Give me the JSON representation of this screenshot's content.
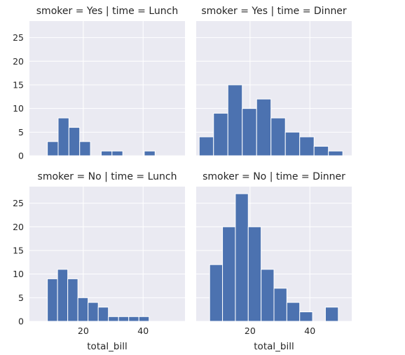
{
  "chart_data": {
    "type": "bar",
    "layout": "facet-grid",
    "xlabel": "total_bill",
    "ylabel": "",
    "xlim": [
      2,
      54
    ],
    "ylim": [
      0,
      28.5
    ],
    "x_ticks": [
      20,
      40
    ],
    "y_ticks": [
      0,
      5,
      10,
      15,
      20,
      25
    ],
    "grid": true,
    "colors": {
      "bar": "#4c72b0",
      "panel": "#eaeaf2",
      "grid": "#ffffff"
    },
    "panels": [
      {
        "title": "smoker = Yes | time = Lunch",
        "bins": [
          {
            "x0": 8.0,
            "x1": 11.6,
            "count": 3
          },
          {
            "x0": 11.6,
            "x1": 15.2,
            "count": 8
          },
          {
            "x0": 15.2,
            "x1": 18.8,
            "count": 6
          },
          {
            "x0": 18.8,
            "x1": 22.4,
            "count": 3
          },
          {
            "x0": 22.4,
            "x1": 26.0,
            "count": 0
          },
          {
            "x0": 26.0,
            "x1": 29.6,
            "count": 1
          },
          {
            "x0": 29.6,
            "x1": 33.2,
            "count": 1
          },
          {
            "x0": 33.2,
            "x1": 36.8,
            "count": 0
          },
          {
            "x0": 36.8,
            "x1": 40.4,
            "count": 0
          },
          {
            "x0": 40.4,
            "x1": 44.0,
            "count": 1
          }
        ]
      },
      {
        "title": "smoker = Yes | time = Dinner",
        "bins": [
          {
            "x0": 3.0,
            "x1": 7.8,
            "count": 4
          },
          {
            "x0": 7.8,
            "x1": 12.6,
            "count": 9
          },
          {
            "x0": 12.6,
            "x1": 17.4,
            "count": 15
          },
          {
            "x0": 17.4,
            "x1": 22.2,
            "count": 10
          },
          {
            "x0": 22.2,
            "x1": 27.0,
            "count": 12
          },
          {
            "x0": 27.0,
            "x1": 31.8,
            "count": 8
          },
          {
            "x0": 31.8,
            "x1": 36.6,
            "count": 5
          },
          {
            "x0": 36.6,
            "x1": 41.4,
            "count": 4
          },
          {
            "x0": 41.4,
            "x1": 46.2,
            "count": 2
          },
          {
            "x0": 46.2,
            "x1": 51.0,
            "count": 1
          }
        ]
      },
      {
        "title": "smoker = No | time = Lunch",
        "bins": [
          {
            "x0": 8.0,
            "x1": 11.4,
            "count": 9
          },
          {
            "x0": 11.4,
            "x1": 14.8,
            "count": 11
          },
          {
            "x0": 14.8,
            "x1": 18.2,
            "count": 9
          },
          {
            "x0": 18.2,
            "x1": 21.6,
            "count": 5
          },
          {
            "x0": 21.6,
            "x1": 25.0,
            "count": 4
          },
          {
            "x0": 25.0,
            "x1": 28.4,
            "count": 3
          },
          {
            "x0": 28.4,
            "x1": 31.8,
            "count": 1
          },
          {
            "x0": 31.8,
            "x1": 35.2,
            "count": 1
          },
          {
            "x0": 35.2,
            "x1": 38.6,
            "count": 1
          },
          {
            "x0": 38.6,
            "x1": 42.0,
            "count": 1
          }
        ]
      },
      {
        "title": "smoker = No | time = Dinner",
        "bins": [
          {
            "x0": 6.5,
            "x1": 10.8,
            "count": 12
          },
          {
            "x0": 10.8,
            "x1": 15.1,
            "count": 20
          },
          {
            "x0": 15.1,
            "x1": 19.4,
            "count": 27
          },
          {
            "x0": 19.4,
            "x1": 23.7,
            "count": 20
          },
          {
            "x0": 23.7,
            "x1": 28.0,
            "count": 11
          },
          {
            "x0": 28.0,
            "x1": 32.3,
            "count": 7
          },
          {
            "x0": 32.3,
            "x1": 36.6,
            "count": 4
          },
          {
            "x0": 36.6,
            "x1": 40.9,
            "count": 2
          },
          {
            "x0": 40.9,
            "x1": 45.2,
            "count": 0
          },
          {
            "x0": 45.2,
            "x1": 49.5,
            "count": 3
          }
        ]
      }
    ]
  }
}
